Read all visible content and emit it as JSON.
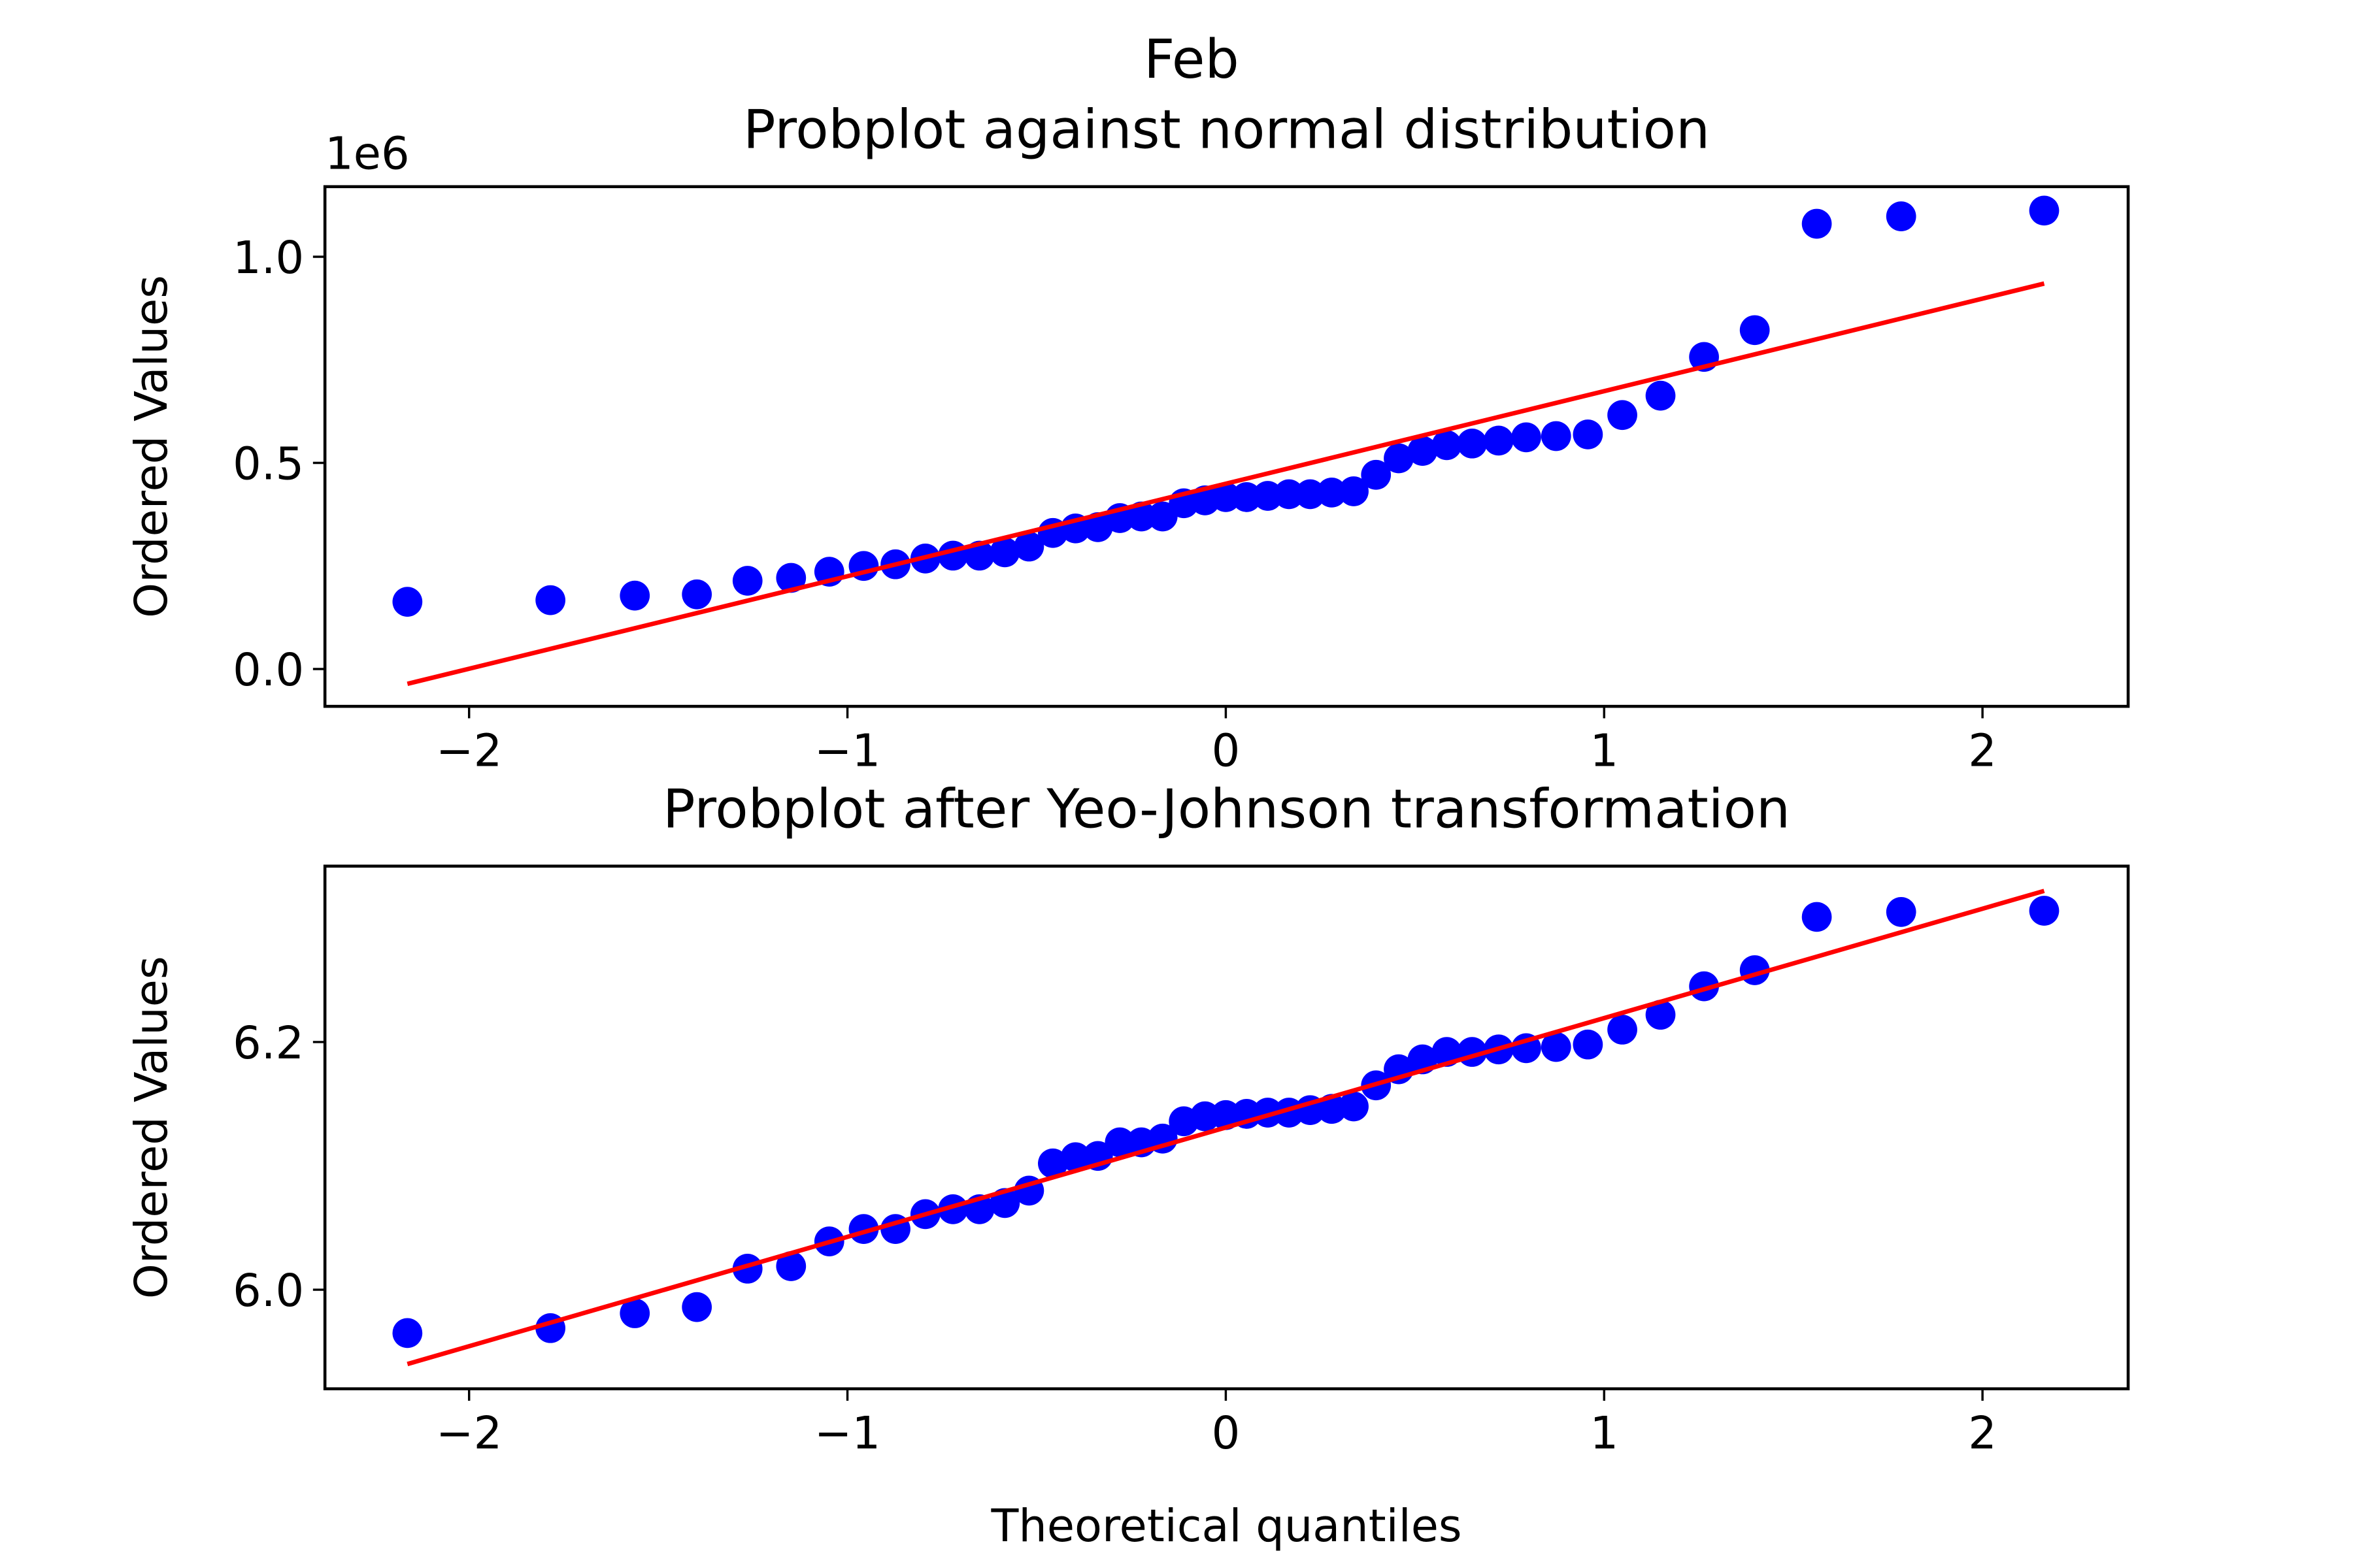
{
  "title": "Feb",
  "chart_data": [
    {
      "type": "scatter",
      "title": "Probplot against normal distribution",
      "ylabel": "Ordered Values",
      "y_offset_label": "1e6",
      "xlim": [
        -2.381,
        2.385
      ],
      "ylim": [
        -0.0906,
        1.17
      ],
      "xticks": [
        {
          "value": -2,
          "label": "−2"
        },
        {
          "value": -1,
          "label": "−1"
        },
        0,
        1,
        2
      ],
      "yticks": [
        {
          "value": 0,
          "label": "0.0"
        },
        0.5,
        {
          "value": 1,
          "label": "1.0"
        }
      ],
      "series": [
        {
          "color": "#0000ff",
          "mode": "markers",
          "x": [
            -2.163,
            -1.785,
            -1.562,
            -1.398,
            -1.264,
            -1.149,
            -1.048,
            -0.957,
            -0.873,
            -0.794,
            -0.721,
            -0.651,
            -0.584,
            -0.52,
            -0.457,
            -0.397,
            -0.338,
            -0.28,
            -0.223,
            -0.167,
            -0.111,
            -0.055,
            0,
            0.055,
            0.111,
            0.167,
            0.223,
            0.28,
            0.338,
            0.397,
            0.457,
            0.52,
            0.584,
            0.651,
            0.721,
            0.794,
            0.873,
            0.957,
            1.048,
            1.149,
            1.264,
            1.398,
            1.562,
            1.785,
            2.163
          ],
          "values": [
            0.163,
            0.167,
            0.178,
            0.181,
            0.214,
            0.221,
            0.236,
            0.25,
            0.254,
            0.268,
            0.275,
            0.275,
            0.283,
            0.297,
            0.33,
            0.341,
            0.344,
            0.366,
            0.37,
            0.37,
            0.402,
            0.409,
            0.417,
            0.417,
            0.42,
            0.424,
            0.424,
            0.428,
            0.431,
            0.471,
            0.511,
            0.529,
            0.543,
            0.547,
            0.554,
            0.562,
            0.565,
            0.569,
            0.616,
            0.663,
            0.757,
            0.822,
            1.08,
            1.098,
            1.112
          ]
        },
        {
          "color": "#ff0000",
          "mode": "line",
          "x": [
            -2.163,
            2.163
          ],
          "values": [
            -0.036,
            0.935
          ]
        }
      ]
    },
    {
      "type": "scatter",
      "title": "Probplot after Yeo-Johnson transformation",
      "ylabel": "Ordered Values",
      "xlabel": "Theoretical quantiles",
      "xlim": [
        -2.381,
        2.385
      ],
      "ylim": [
        5.92,
        6.342
      ],
      "xticks": [
        {
          "value": -2,
          "label": "−2"
        },
        {
          "value": -1,
          "label": "−1"
        },
        0,
        1,
        2
      ],
      "yticks": [
        {
          "value": 6,
          "label": "6.0"
        },
        6.2
      ],
      "series": [
        {
          "color": "#0000ff",
          "mode": "markers",
          "x": [
            -2.163,
            -1.785,
            -1.562,
            -1.398,
            -1.264,
            -1.149,
            -1.048,
            -0.957,
            -0.873,
            -0.794,
            -0.721,
            -0.651,
            -0.584,
            -0.52,
            -0.457,
            -0.397,
            -0.338,
            -0.28,
            -0.223,
            -0.167,
            -0.111,
            -0.055,
            0,
            0.055,
            0.111,
            0.167,
            0.223,
            0.28,
            0.338,
            0.397,
            0.457,
            0.52,
            0.584,
            0.651,
            0.721,
            0.794,
            0.873,
            0.957,
            1.048,
            1.149,
            1.264,
            1.398,
            1.562,
            1.785,
            2.163
          ],
          "values": [
            5.965,
            5.969,
            5.981,
            5.986,
            6.017,
            6.019,
            6.039,
            6.049,
            6.049,
            6.061,
            6.065,
            6.065,
            6.07,
            6.08,
            6.102,
            6.107,
            6.108,
            6.119,
            6.119,
            6.122,
            6.136,
            6.14,
            6.141,
            6.142,
            6.143,
            6.143,
            6.145,
            6.146,
            6.148,
            6.165,
            6.178,
            6.186,
            6.192,
            6.192,
            6.194,
            6.195,
            6.196,
            6.198,
            6.21,
            6.222,
            6.245,
            6.258,
            6.301,
            6.305,
            6.306
          ]
        },
        {
          "color": "#ff0000",
          "mode": "line",
          "x": [
            -2.163,
            2.163
          ],
          "values": [
            5.94,
            6.322
          ]
        }
      ]
    }
  ]
}
